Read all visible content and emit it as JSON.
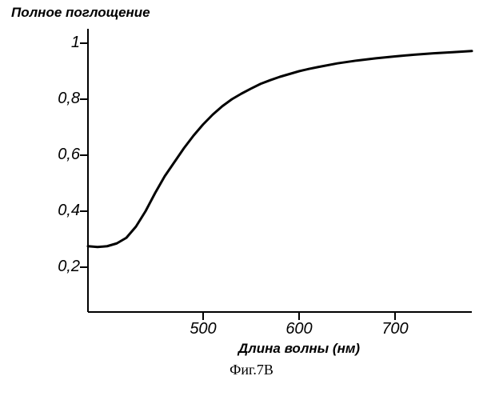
{
  "chart": {
    "type": "line",
    "title": "Полное поглощение",
    "xlabel": "Длина волны (нм)",
    "caption": "Фиг.7B",
    "background_color": "#ffffff",
    "axis_color": "#000000",
    "line_color": "#000000",
    "line_width": 3,
    "tick_length": 10,
    "tick_width": 2,
    "axis_width": 2,
    "title_fontsize": 17,
    "title_fontstyle": "italic bold",
    "label_fontsize": 17,
    "tick_fontsize": 20,
    "tick_fontstyle": "italic",
    "caption_fontsize": 18,
    "xlim": [
      380,
      780
    ],
    "ylim": [
      0.04,
      1.04
    ],
    "xticks": [
      500,
      600,
      700
    ],
    "yticks": [
      0.2,
      0.4,
      0.6,
      0.8,
      1
    ],
    "ytick_labels": [
      "0,2",
      "0,4",
      "0,6",
      "0,8",
      "1"
    ],
    "series": {
      "x": [
        380,
        390,
        400,
        410,
        420,
        430,
        440,
        450,
        460,
        470,
        480,
        490,
        500,
        510,
        520,
        530,
        540,
        550,
        560,
        570,
        580,
        590,
        600,
        610,
        620,
        640,
        660,
        680,
        700,
        720,
        740,
        760,
        780
      ],
      "y": [
        0.275,
        0.272,
        0.275,
        0.285,
        0.305,
        0.345,
        0.4,
        0.465,
        0.525,
        0.575,
        0.625,
        0.67,
        0.71,
        0.745,
        0.775,
        0.8,
        0.82,
        0.838,
        0.855,
        0.868,
        0.88,
        0.89,
        0.9,
        0.908,
        0.915,
        0.928,
        0.938,
        0.946,
        0.953,
        0.959,
        0.964,
        0.968,
        0.972
      ]
    }
  }
}
